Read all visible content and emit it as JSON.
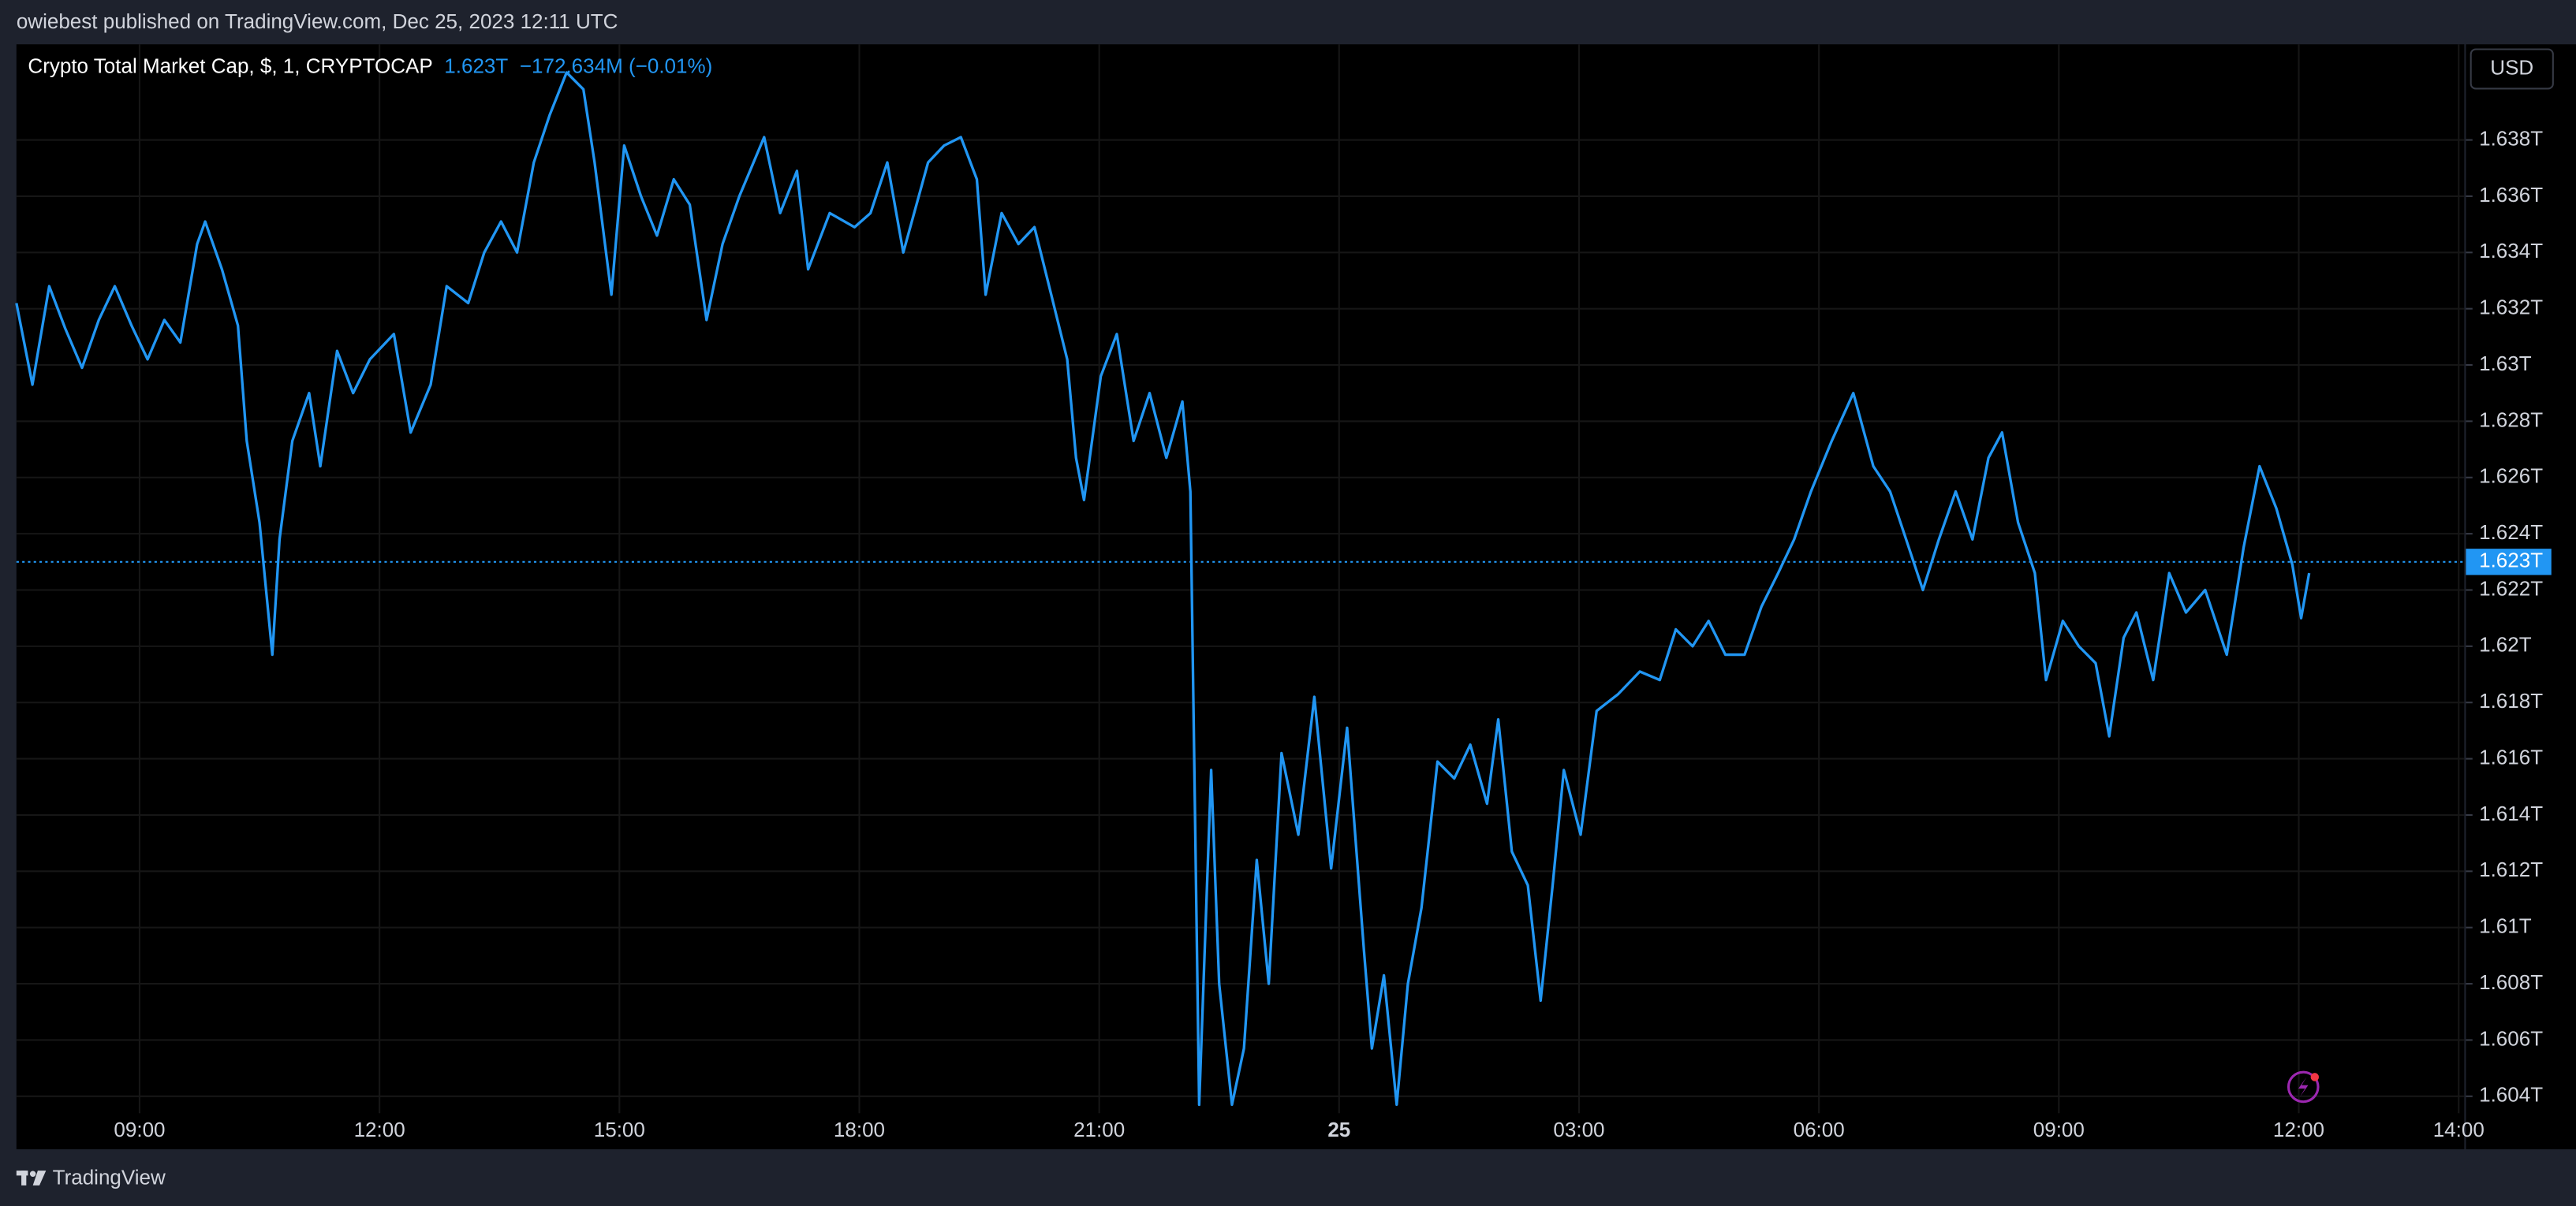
{
  "header": {
    "publisher": "owiebest published on TradingView.com, Dec 25, 2023 12:11 UTC"
  },
  "footer": {
    "brand": "TradingView"
  },
  "chart_data": {
    "type": "line",
    "title": "Crypto Total Market Cap, $, 1, CRYPTOCAP",
    "change": "−172.634M (−0.01%)",
    "currency": "USD",
    "price_line": {
      "value": 1.623,
      "label": "1.623T"
    },
    "color": "#2196f3",
    "grid": true,
    "xlim": [
      7.46,
      38.07
    ],
    "ylim": [
      1.6034,
      1.6414
    ],
    "xticks": [
      {
        "value": 9,
        "label": "09:00"
      },
      {
        "value": 12,
        "label": "12:00"
      },
      {
        "value": 15,
        "label": "15:00"
      },
      {
        "value": 18,
        "label": "18:00"
      },
      {
        "value": 21,
        "label": "21:00"
      },
      {
        "value": 24,
        "label": "25"
      },
      {
        "value": 27,
        "label": "03:00"
      },
      {
        "value": 30,
        "label": "06:00"
      },
      {
        "value": 33,
        "label": "09:00"
      },
      {
        "value": 36,
        "label": "12:00"
      },
      {
        "value": 38,
        "label": "14:00"
      }
    ],
    "yticks": [
      {
        "value": 1.604,
        "label": "1.604T"
      },
      {
        "value": 1.606,
        "label": "1.606T"
      },
      {
        "value": 1.608,
        "label": "1.608T"
      },
      {
        "value": 1.61,
        "label": "1.61T"
      },
      {
        "value": 1.612,
        "label": "1.612T"
      },
      {
        "value": 1.614,
        "label": "1.614T"
      },
      {
        "value": 1.616,
        "label": "1.616T"
      },
      {
        "value": 1.618,
        "label": "1.618T"
      },
      {
        "value": 1.62,
        "label": "1.62T"
      },
      {
        "value": 1.622,
        "label": "1.622T"
      },
      {
        "value": 1.624,
        "label": "1.624T"
      },
      {
        "value": 1.626,
        "label": "1.626T"
      },
      {
        "value": 1.628,
        "label": "1.628T"
      },
      {
        "value": 1.63,
        "label": "1.63T"
      },
      {
        "value": 1.632,
        "label": "1.632T"
      },
      {
        "value": 1.634,
        "label": "1.634T"
      },
      {
        "value": 1.636,
        "label": "1.636T"
      },
      {
        "value": 1.638,
        "label": "1.638T"
      }
    ],
    "x": [
      7.46,
      7.66,
      7.87,
      8.07,
      8.28,
      8.49,
      8.69,
      8.9,
      9.1,
      9.31,
      9.51,
      9.72,
      9.82,
      10.03,
      10.23,
      10.34,
      10.5,
      10.66,
      10.75,
      10.91,
      11.12,
      11.26,
      11.47,
      11.67,
      11.88,
      12.18,
      12.39,
      12.64,
      12.84,
      13.11,
      13.31,
      13.52,
      13.72,
      13.93,
      14.13,
      14.34,
      14.55,
      14.69,
      14.9,
      15.06,
      15.27,
      15.47,
      15.68,
      15.88,
      16.09,
      16.29,
      16.5,
      16.81,
      17.01,
      17.22,
      17.36,
      17.63,
      17.94,
      18.14,
      18.35,
      18.55,
      18.86,
      19.06,
      19.27,
      19.47,
      19.58,
      19.78,
      19.99,
      20.19,
      20.4,
      20.6,
      20.71,
      20.81,
      21.02,
      21.22,
      21.43,
      21.63,
      21.84,
      22.04,
      22.14,
      22.25,
      22.4,
      22.5,
      22.66,
      22.81,
      22.97,
      23.12,
      23.28,
      23.49,
      23.69,
      23.9,
      24.1,
      24.31,
      24.41,
      24.56,
      24.72,
      24.86,
      25.03,
      25.23,
      25.44,
      25.64,
      25.85,
      25.99,
      26.16,
      26.36,
      26.52,
      26.67,
      26.81,
      27.02,
      27.22,
      27.49,
      27.76,
      28.01,
      28.21,
      28.42,
      28.62,
      28.83,
      29.07,
      29.28,
      29.49,
      29.69,
      29.9,
      30.16,
      30.43,
      30.68,
      30.89,
      31.09,
      31.3,
      31.5,
      31.71,
      31.92,
      32.12,
      32.29,
      32.49,
      32.7,
      32.84,
      33.05,
      33.25,
      33.46,
      33.63,
      33.81,
      33.97,
      34.18,
      34.38,
      34.59,
      34.83,
      35.1,
      35.31,
      35.51,
      35.72,
      35.92,
      36.03,
      36.13
    ],
    "values": [
      1.6322,
      1.6293,
      1.6328,
      1.6313,
      1.6299,
      1.6316,
      1.6328,
      1.6314,
      1.6302,
      1.6316,
      1.6308,
      1.6343,
      1.6351,
      1.6334,
      1.6314,
      1.6273,
      1.6244,
      1.6197,
      1.6238,
      1.6273,
      1.629,
      1.6264,
      1.6305,
      1.629,
      1.6302,
      1.6311,
      1.6276,
      1.6293,
      1.6328,
      1.6322,
      1.634,
      1.6351,
      1.634,
      1.6372,
      1.6389,
      1.6404,
      1.6398,
      1.6372,
      1.6325,
      1.6378,
      1.636,
      1.6346,
      1.6366,
      1.6357,
      1.6316,
      1.6343,
      1.636,
      1.6381,
      1.6354,
      1.6369,
      1.6334,
      1.6354,
      1.6349,
      1.6354,
      1.6372,
      1.634,
      1.6372,
      1.6378,
      1.6381,
      1.6366,
      1.6325,
      1.6354,
      1.6343,
      1.6349,
      1.6325,
      1.6302,
      1.6267,
      1.6252,
      1.6296,
      1.6311,
      1.6273,
      1.629,
      1.6267,
      1.6287,
      1.6255,
      1.6037,
      1.6156,
      1.608,
      1.6037,
      1.6057,
      1.6124,
      1.608,
      1.6162,
      1.6133,
      1.6182,
      1.6121,
      1.6171,
      1.6092,
      1.6057,
      1.6083,
      1.6037,
      1.608,
      1.6107,
      1.6159,
      1.6153,
      1.6165,
      1.6144,
      1.6174,
      1.6127,
      1.6115,
      1.6074,
      1.6115,
      1.6156,
      1.6133,
      1.6177,
      1.6183,
      1.6191,
      1.6188,
      1.6206,
      1.62,
      1.6209,
      1.6197,
      1.6197,
      1.6214,
      1.6226,
      1.6238,
      1.6255,
      1.6273,
      1.629,
      1.6264,
      1.6255,
      1.6238,
      1.622,
      1.6238,
      1.6255,
      1.6238,
      1.6267,
      1.6276,
      1.6244,
      1.6226,
      1.6188,
      1.6209,
      1.62,
      1.6194,
      1.6168,
      1.6203,
      1.6212,
      1.6188,
      1.6226,
      1.6212,
      1.622,
      1.6197,
      1.6235,
      1.6264,
      1.6249,
      1.6229,
      1.621,
      1.6226
    ]
  }
}
